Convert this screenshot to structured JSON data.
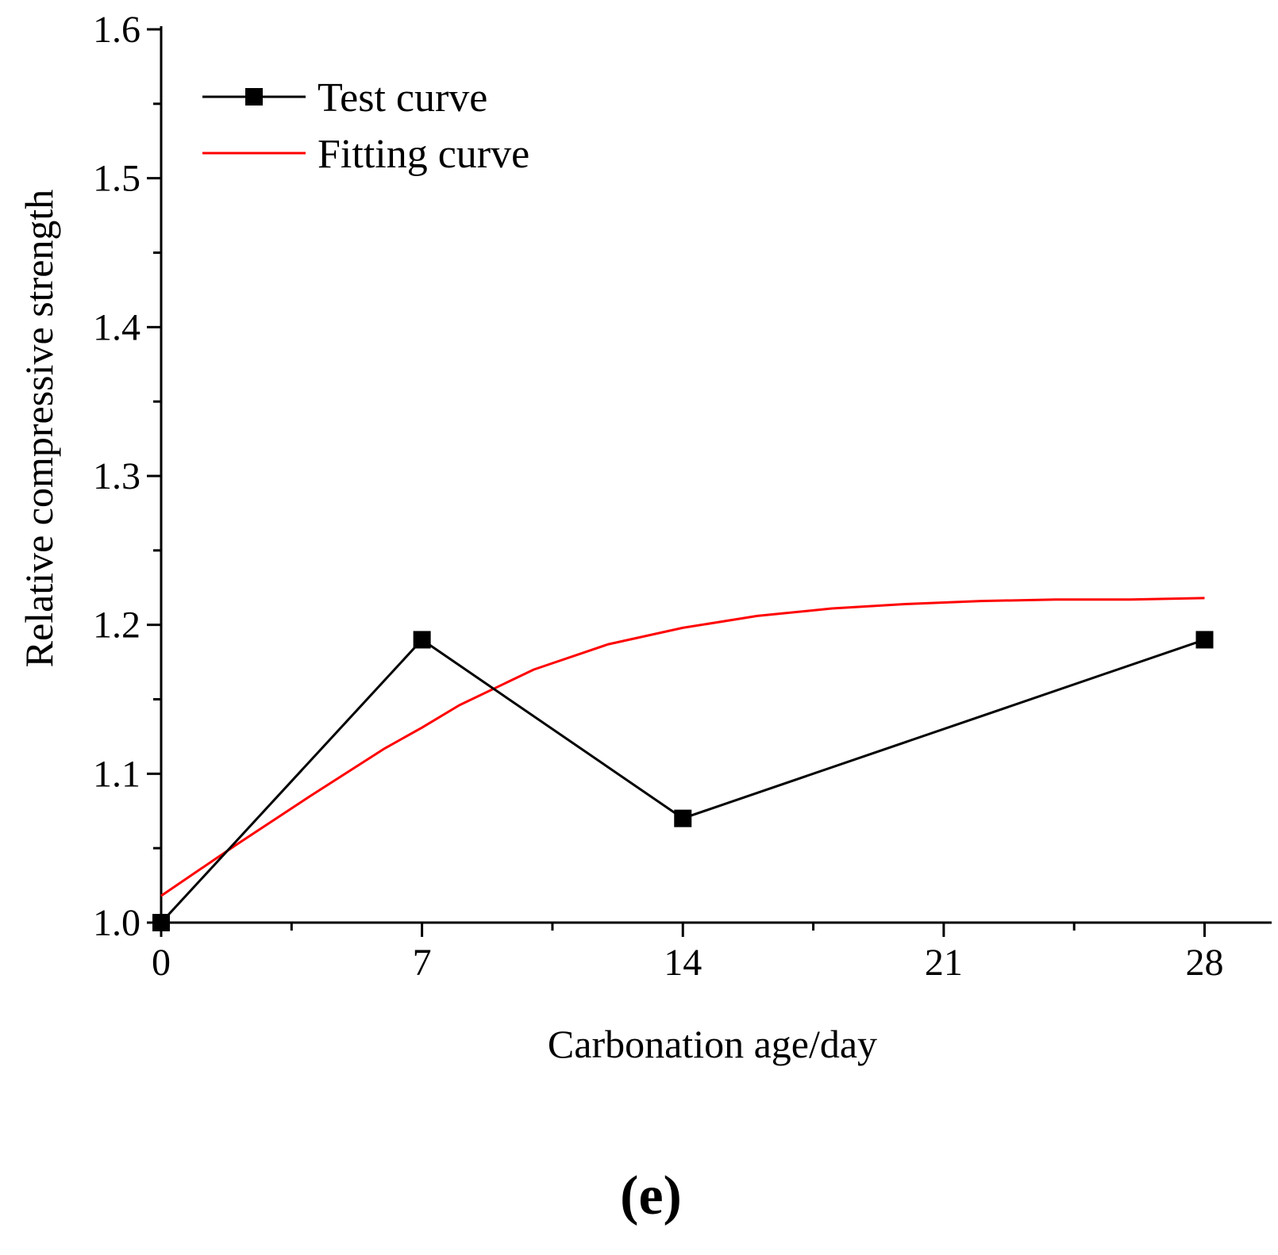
{
  "panel_label": "(e)",
  "colors": {
    "test_curve": "#000000",
    "fitting_curve": "#ff0000",
    "axis": "#000000"
  },
  "chart_data": {
    "type": "line",
    "title": "",
    "xlabel": "Carbonation age/day",
    "ylabel": "Relative compressive strength",
    "xlim": [
      0,
      29.8
    ],
    "ylim": [
      1.0,
      1.6
    ],
    "xticks": [
      0,
      7,
      14,
      21,
      28
    ],
    "xtick_labels": [
      "0",
      "7",
      "14",
      "21",
      "28"
    ],
    "yticks": [
      1.0,
      1.1,
      1.2,
      1.3,
      1.4,
      1.5,
      1.6
    ],
    "ytick_labels": [
      "1.0",
      "1.1",
      "1.2",
      "1.3",
      "1.4",
      "1.5",
      "1.6"
    ],
    "legend_position": "top-left",
    "grid": false,
    "series": [
      {
        "name": "Test curve",
        "style": "line-square-markers",
        "color": "#000000",
        "x": [
          0,
          7,
          14,
          28
        ],
        "values": [
          1.0,
          1.19,
          1.07,
          1.19
        ]
      },
      {
        "name": "Fitting curve",
        "style": "line",
        "color": "#ff0000",
        "x": [
          0,
          2,
          4,
          6,
          7,
          8,
          10,
          12,
          14,
          16,
          18,
          20,
          22,
          24,
          26,
          28
        ],
        "values": [
          1.018,
          1.052,
          1.085,
          1.117,
          1.131,
          1.146,
          1.17,
          1.187,
          1.198,
          1.206,
          1.211,
          1.214,
          1.216,
          1.217,
          1.217,
          1.218
        ]
      }
    ]
  }
}
